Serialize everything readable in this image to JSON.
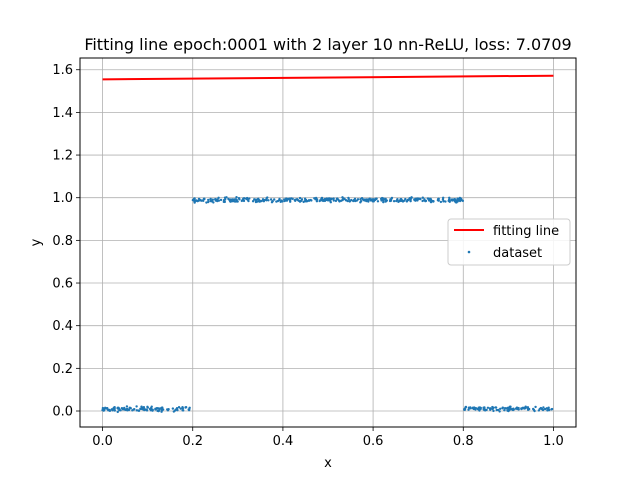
{
  "chart_data": {
    "type": "scatter",
    "title": "Fitting line epoch:0001 with 2 layer 10 nn-ReLU, loss: 7.0709",
    "xlabel": "x",
    "ylabel": "y",
    "xlim": [
      -0.05,
      1.05
    ],
    "ylim": [
      -0.075,
      1.655
    ],
    "grid": true,
    "legend_position": "center-right",
    "x_ticks": [
      0.0,
      0.2,
      0.4,
      0.6,
      0.8,
      1.0
    ],
    "x_tick_labels": [
      "0.0",
      "0.2",
      "0.4",
      "0.6",
      "0.8",
      "1.0"
    ],
    "y_ticks": [
      0.0,
      0.2,
      0.4,
      0.6,
      0.8,
      1.0,
      1.2,
      1.4,
      1.6
    ],
    "y_tick_labels": [
      "0.0",
      "0.2",
      "0.4",
      "0.6",
      "0.8",
      "1.0",
      "1.2",
      "1.4",
      "1.6"
    ],
    "series": [
      {
        "name": "fitting line",
        "kind": "line",
        "color": "#ff0000",
        "x": [
          0.0,
          1.0
        ],
        "y": [
          1.555,
          1.572
        ]
      },
      {
        "name": "dataset",
        "kind": "scatter",
        "color": "#1f77b4",
        "segments": [
          {
            "x_range": [
              0.0,
              0.2
            ],
            "y": 0.01,
            "noise": 0.008
          },
          {
            "x_range": [
              0.2,
              0.8
            ],
            "y": 0.99,
            "noise": 0.008
          },
          {
            "x_range": [
              0.8,
              1.0
            ],
            "y": 0.01,
            "noise": 0.008
          }
        ],
        "points_per_segment": [
          120,
          360,
          120
        ]
      }
    ]
  }
}
